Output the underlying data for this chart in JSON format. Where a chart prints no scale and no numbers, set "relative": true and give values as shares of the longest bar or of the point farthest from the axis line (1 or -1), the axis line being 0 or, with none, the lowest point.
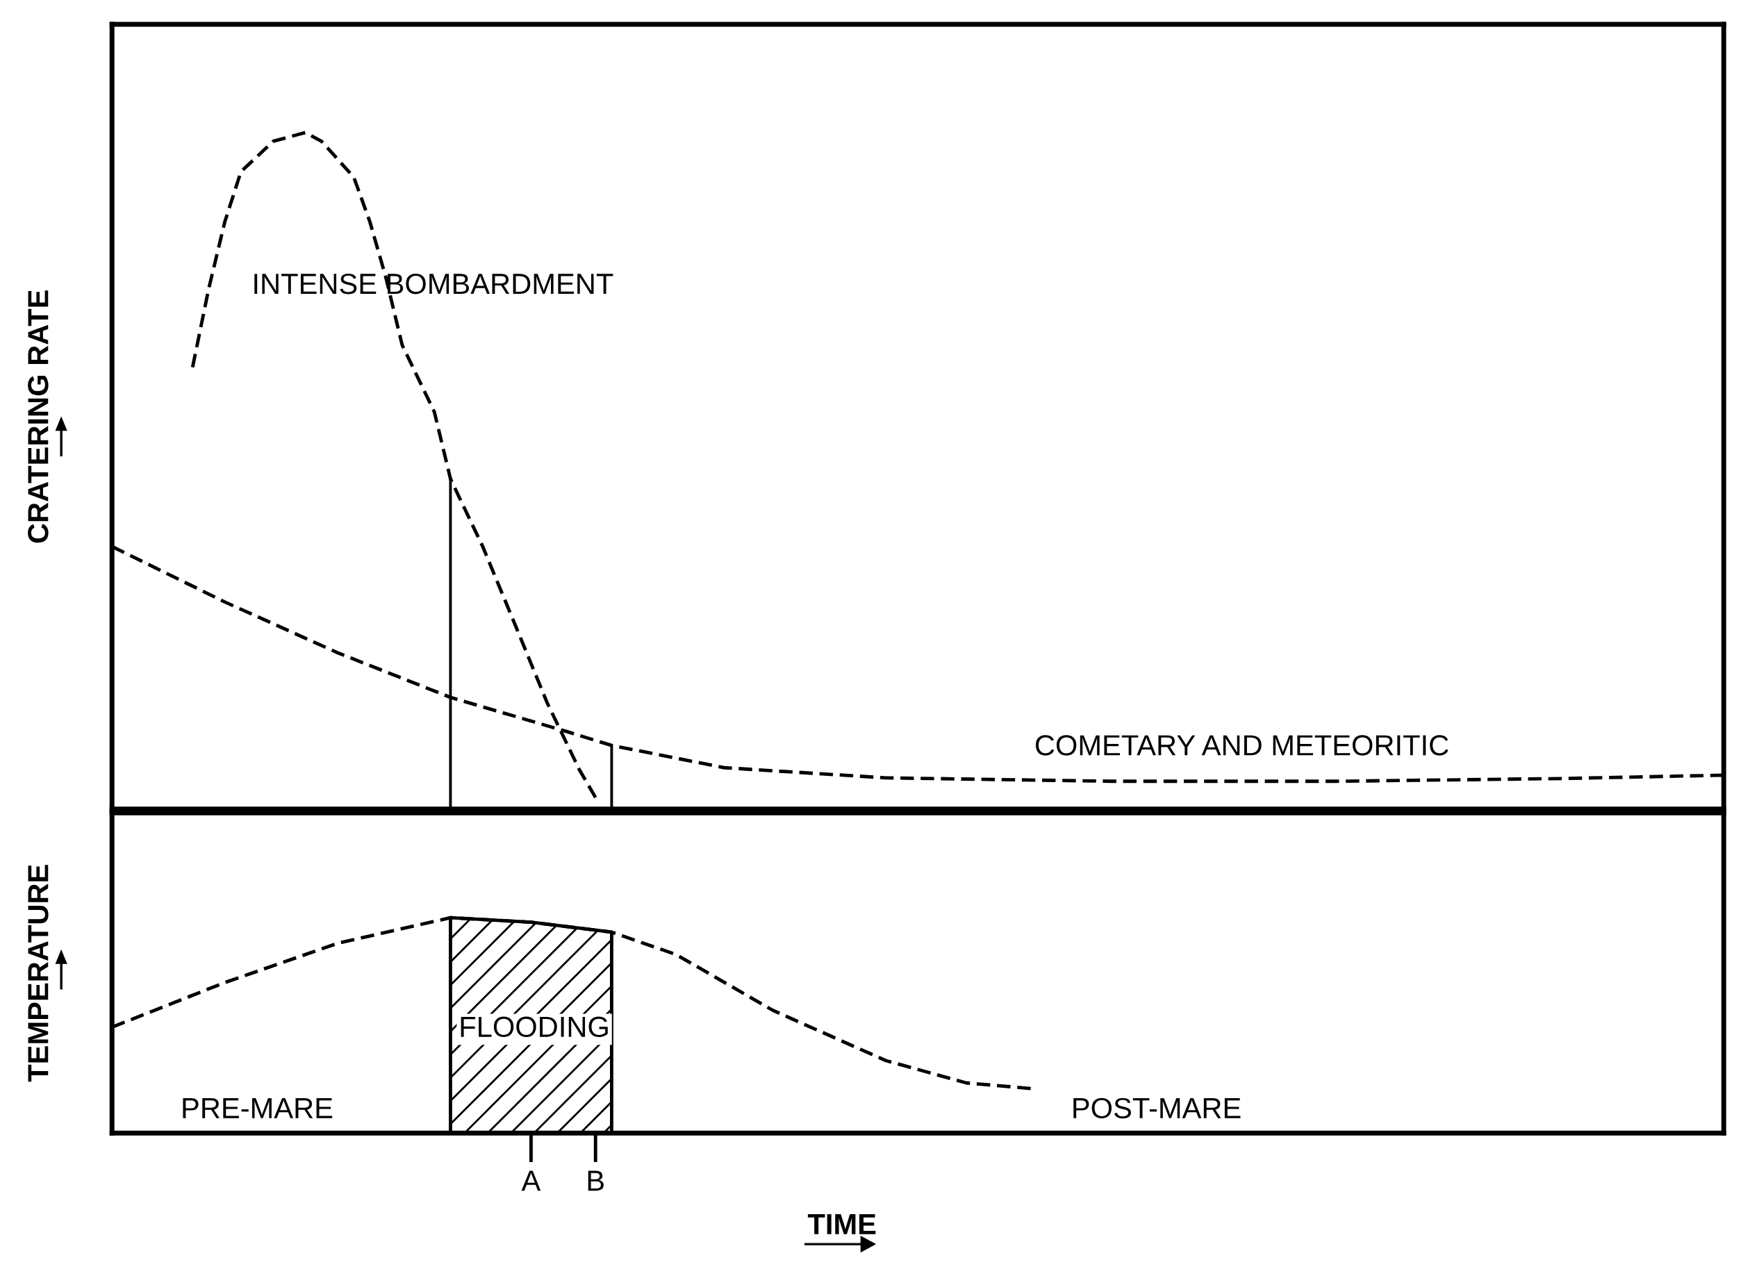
{
  "chart_data": [
    {
      "type": "line",
      "relative": true,
      "ylabel": "CRATERING RATE",
      "tick_labels": false,
      "grid": false,
      "legend": false,
      "marker": "none",
      "categories": [
        null,
        null,
        null,
        null,
        null,
        null,
        null,
        null,
        null,
        null,
        null,
        null,
        null,
        null,
        null,
        null,
        null,
        null,
        null,
        null,
        null,
        null,
        null,
        null,
        null,
        null,
        null,
        null,
        null,
        null,
        null,
        null,
        null,
        null,
        null,
        null,
        null,
        null,
        null,
        null,
        null,
        null,
        null,
        null,
        null,
        null,
        null,
        null,
        null,
        null,
        null,
        null,
        null,
        null,
        null,
        null,
        null,
        null,
        null,
        null,
        null,
        null,
        null,
        null,
        null,
        null,
        null,
        null,
        null,
        null,
        null,
        null,
        null,
        null,
        null,
        null,
        null,
        null,
        null,
        null,
        null,
        null,
        null,
        null,
        null,
        null,
        null,
        null,
        null,
        null,
        null,
        null,
        null,
        null,
        null,
        null,
        null,
        null,
        null,
        null,
        null
      ],
      "series": [
        {
          "color": "#000000",
          "line_style": "dashed",
          "values": [
            null,
            null,
            null,
            null,
            null,
            0.653,
            0.769,
            0.868,
            0.942,
            null,
            0.987,
            null,
            1.0,
            0.987,
            null,
            0.934,
            0.868,
            0.785,
            0.686,
            null,
            0.587,
            0.488,
            null,
            0.388,
            null,
            0.273,
            null,
            0.157,
            null,
            0.058,
            0.017,
            null,
            null,
            null,
            null,
            null,
            null,
            null,
            null,
            null,
            null,
            null,
            null,
            null,
            null,
            null,
            null,
            null,
            null,
            null,
            null,
            null,
            null,
            null,
            null,
            null,
            null,
            null,
            null,
            null,
            null,
            null,
            null,
            null,
            null,
            null,
            null,
            null,
            null,
            null,
            null,
            null,
            null,
            null,
            null,
            null,
            null,
            null,
            null,
            null,
            null,
            null,
            null,
            null,
            null,
            null,
            null,
            null,
            null,
            null,
            null,
            null,
            null,
            null,
            null,
            null,
            null,
            null,
            null,
            null,
            null
          ]
        },
        {
          "color": "#000000",
          "line_style": "dashed",
          "values": [
            0.388,
            null,
            null,
            null,
            null,
            null,
            null,
            0.306,
            null,
            null,
            null,
            null,
            null,
            null,
            0.231,
            null,
            null,
            null,
            null,
            null,
            null,
            0.165,
            null,
            null,
            null,
            null,
            null,
            null,
            0.116,
            null,
            null,
            0.094,
            null,
            null,
            null,
            null,
            null,
            null,
            0.061,
            null,
            null,
            null,
            null,
            null,
            null,
            null,
            null,
            null,
            0.046,
            null,
            null,
            null,
            null,
            null,
            null,
            null,
            null,
            null,
            null,
            null,
            null,
            null,
            0.041,
            null,
            null,
            null,
            null,
            null,
            null,
            null,
            null,
            null,
            null,
            null,
            null,
            null,
            0.041,
            null,
            null,
            null,
            null,
            null,
            null,
            null,
            null,
            null,
            null,
            null,
            null,
            null,
            0.045,
            null,
            null,
            null,
            null,
            null,
            null,
            null,
            null,
            null,
            0.05
          ]
        }
      ],
      "annotations": [
        "INTENSE BOMBARDMENT",
        "COMETARY AND METEORITIC"
      ]
    },
    {
      "type": "line",
      "relative": true,
      "ylabel": "TEMPERATURE",
      "xlabel": "TIME",
      "tick_labels": "x",
      "grid": false,
      "legend": false,
      "marker": "none",
      "categories": [
        null,
        null,
        null,
        null,
        null,
        null,
        null,
        null,
        null,
        null,
        null,
        null,
        null,
        null,
        null,
        null,
        null,
        null,
        null,
        null,
        null,
        null,
        null,
        null,
        null,
        null,
        "A",
        null,
        null,
        null,
        "B",
        null,
        null,
        null,
        null,
        null,
        null,
        null,
        null,
        null,
        null,
        null,
        null,
        null,
        null,
        null,
        null,
        null,
        null,
        null,
        null,
        null,
        null,
        null,
        null,
        null,
        null,
        null,
        null,
        null,
        null,
        null,
        null,
        null,
        null,
        null,
        null,
        null,
        null,
        null,
        null,
        null,
        null,
        null,
        null,
        null,
        null,
        null,
        null,
        null,
        null,
        null,
        null,
        null,
        null,
        null,
        null,
        null,
        null,
        null,
        null,
        null,
        null,
        null,
        null,
        null,
        null,
        null,
        null,
        null,
        null
      ],
      "series": [
        {
          "color": "#000000",
          "line_style": "dashed",
          "values": [
            0.492,
            null,
            null,
            null,
            null,
            null,
            null,
            0.699,
            null,
            null,
            null,
            null,
            null,
            null,
            0.881,
            null,
            null,
            null,
            null,
            null,
            null,
            1.0,
            null,
            null,
            null,
            null,
            0.979,
            null,
            null,
            null,
            null,
            0.933,
            null,
            null,
            null,
            0.829,
            null,
            null,
            null,
            null,
            null,
            0.57,
            null,
            null,
            null,
            null,
            null,
            null,
            0.337,
            null,
            null,
            null,
            null,
            0.233,
            null,
            null,
            null,
            0.207,
            null,
            null,
            null,
            null,
            null,
            null,
            null,
            null,
            null,
            null,
            null,
            null,
            null,
            null,
            null,
            null,
            null,
            null,
            null,
            null,
            null,
            null,
            null,
            null,
            null,
            null,
            null,
            null,
            null,
            null,
            null,
            null,
            null,
            null,
            null,
            null,
            null,
            null,
            null,
            null,
            null,
            null,
            null
          ]
        },
        {
          "type": "area",
          "color": "#000000",
          "line_style": "solid",
          "values": [
            null,
            null,
            null,
            null,
            null,
            null,
            null,
            null,
            null,
            null,
            null,
            null,
            null,
            null,
            null,
            null,
            null,
            null,
            null,
            null,
            null,
            1.0,
            null,
            null,
            null,
            null,
            0.979,
            null,
            null,
            null,
            null,
            0.933,
            null,
            null,
            null,
            null,
            null,
            null,
            null,
            null,
            null,
            null,
            null,
            null,
            null,
            null,
            null,
            null,
            null,
            null,
            null,
            null,
            null,
            null,
            null,
            null,
            null,
            null,
            null,
            null,
            null,
            null,
            null,
            null,
            null,
            null,
            null,
            null,
            null,
            null,
            null,
            null,
            null,
            null,
            null,
            null,
            null,
            null,
            null,
            null,
            null,
            null,
            null,
            null,
            null,
            null,
            null,
            null,
            null,
            null,
            null,
            null,
            null,
            null,
            null,
            null,
            null,
            null,
            null,
            null,
            null
          ]
        }
      ],
      "annotations": [
        "FLOODING",
        "PRE-MARE",
        "POST-MARE"
      ]
    }
  ]
}
